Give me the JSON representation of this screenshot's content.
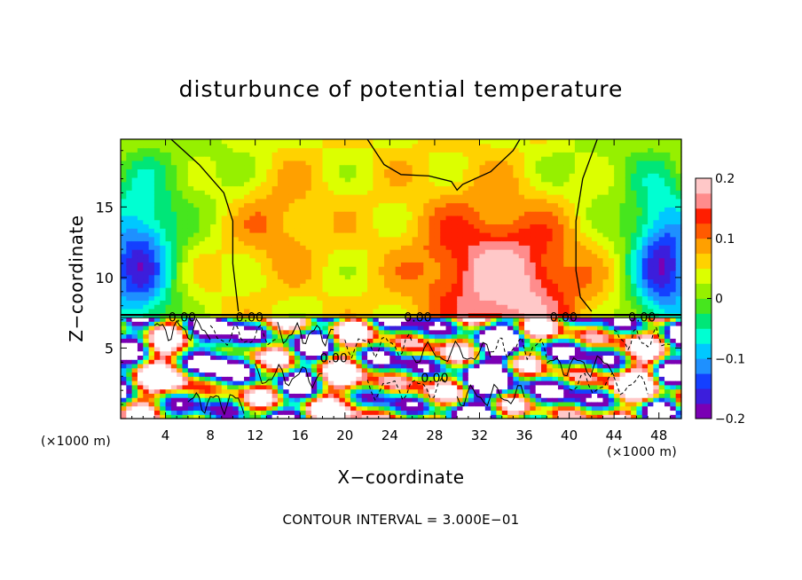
{
  "chart_data": {
    "type": "heatmap",
    "title": "disturbunce of potential temperature",
    "xlabel": "X−coordinate",
    "ylabel": "Z−coordinate",
    "x_unit": "(×1000 m)",
    "y_unit": "(×1000 m)",
    "footnote": "CONTOUR INTERVAL = 3.000E−01",
    "xlim": [
      0,
      50
    ],
    "ylim": [
      0,
      19.8
    ],
    "x_ticks": [
      4,
      8,
      12,
      16,
      20,
      24,
      28,
      32,
      36,
      40,
      44,
      48
    ],
    "y_ticks": [
      5,
      10,
      15
    ],
    "colorbar": {
      "range": [
        -0.2,
        0.2
      ],
      "tick_values": [
        0.2,
        0.1,
        0,
        -0.1,
        -0.2
      ],
      "tick_labels": [
        "0.2",
        "0.1",
        "0",
        "−0.1",
        "−0.2"
      ],
      "colors": [
        "#7a00b4",
        "#3c1edc",
        "#1440ff",
        "#1e90ff",
        "#00c8ff",
        "#00ffd2",
        "#00e678",
        "#46e61e",
        "#96f000",
        "#dcff00",
        "#ffd200",
        "#ffa000",
        "#ff5a00",
        "#ff1e00",
        "#ff8c8c",
        "#ffc8c8"
      ]
    },
    "contour_labels": [
      {
        "x": 5.5,
        "y": 7.2,
        "text": "0.00"
      },
      {
        "x": 11.5,
        "y": 7.2,
        "text": "0.00"
      },
      {
        "x": 26.5,
        "y": 7.2,
        "text": "0.00"
      },
      {
        "x": 39.5,
        "y": 7.2,
        "text": "0.00"
      },
      {
        "x": 46.5,
        "y": 7.2,
        "text": "0.00"
      },
      {
        "x": 19.0,
        "y": 4.3,
        "text": "0.00"
      },
      {
        "x": 28.0,
        "y": 2.9,
        "text": "0.00"
      }
    ]
  }
}
